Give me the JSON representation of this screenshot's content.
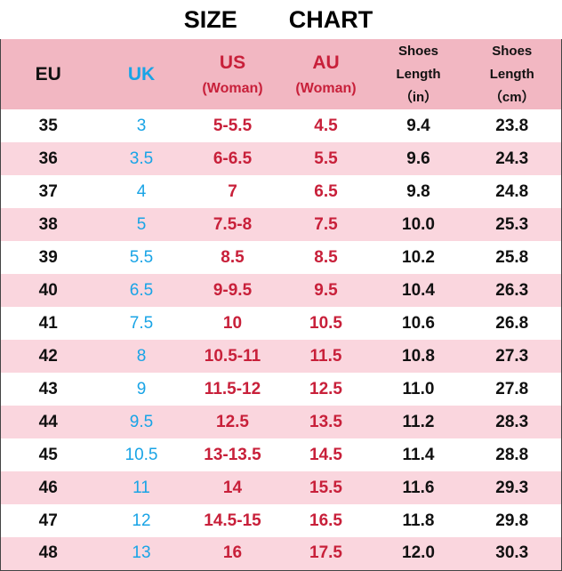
{
  "title": {
    "word1": "SIZE",
    "word2": "CHART"
  },
  "headers": {
    "eu": "EU",
    "uk": "UK",
    "us_main": "US",
    "us_sub": "(Woman)",
    "au_main": "AU",
    "au_sub": "(Woman)",
    "in_line1": "Shoes",
    "in_line2": "Length",
    "in_line3": "（in）",
    "cm_line1": "Shoes",
    "cm_line2": "Length",
    "cm_line3": "（cm）"
  },
  "colors": {
    "header_bg": "#f2b7c2",
    "stripe_bg": "#fad6de",
    "uk_blue": "#19a4e6",
    "us_au_red": "#c8203a"
  },
  "rows": [
    {
      "eu": "35",
      "uk": "3",
      "us": "5-5.5",
      "au": "4.5",
      "in": "9.4",
      "cm": "23.8"
    },
    {
      "eu": "36",
      "uk": "3.5",
      "us": "6-6.5",
      "au": "5.5",
      "in": "9.6",
      "cm": "24.3"
    },
    {
      "eu": "37",
      "uk": "4",
      "us": "7",
      "au": "6.5",
      "in": "9.8",
      "cm": "24.8"
    },
    {
      "eu": "38",
      "uk": "5",
      "us": "7.5-8",
      "au": "7.5",
      "in": "10.0",
      "cm": "25.3"
    },
    {
      "eu": "39",
      "uk": "5.5",
      "us": "8.5",
      "au": "8.5",
      "in": "10.2",
      "cm": "25.8"
    },
    {
      "eu": "40",
      "uk": "6.5",
      "us": "9-9.5",
      "au": "9.5",
      "in": "10.4",
      "cm": "26.3"
    },
    {
      "eu": "41",
      "uk": "7.5",
      "us": "10",
      "au": "10.5",
      "in": "10.6",
      "cm": "26.8"
    },
    {
      "eu": "42",
      "uk": "8",
      "us": "10.5-11",
      "au": "11.5",
      "in": "10.8",
      "cm": "27.3"
    },
    {
      "eu": "43",
      "uk": "9",
      "us": "11.5-12",
      "au": "12.5",
      "in": "11.0",
      "cm": "27.8"
    },
    {
      "eu": "44",
      "uk": "9.5",
      "us": "12.5",
      "au": "13.5",
      "in": "11.2",
      "cm": "28.3"
    },
    {
      "eu": "45",
      "uk": "10.5",
      "us": "13-13.5",
      "au": "14.5",
      "in": "11.4",
      "cm": "28.8"
    },
    {
      "eu": "46",
      "uk": "11",
      "us": "14",
      "au": "15.5",
      "in": "11.6",
      "cm": "29.3"
    },
    {
      "eu": "47",
      "uk": "12",
      "us": "14.5-15",
      "au": "16.5",
      "in": "11.8",
      "cm": "29.8"
    },
    {
      "eu": "48",
      "uk": "13",
      "us": "16",
      "au": "17.5",
      "in": "12.0",
      "cm": "30.3"
    }
  ]
}
